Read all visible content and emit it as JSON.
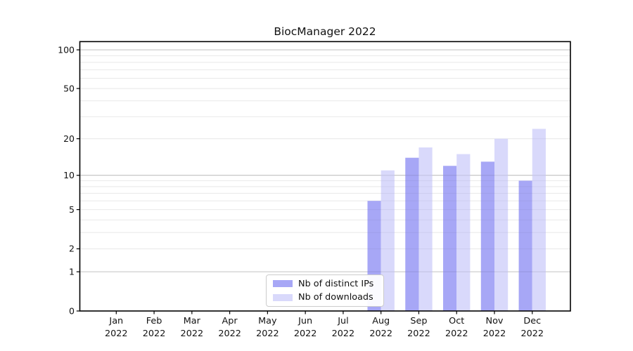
{
  "title": "BiocManager 2022",
  "chart_data": {
    "type": "bar",
    "title": "BiocManager 2022",
    "categories": [
      "Jan 2022",
      "Feb 2022",
      "Mar 2022",
      "Apr 2022",
      "May 2022",
      "Jun 2022",
      "Jul 2022",
      "Aug 2022",
      "Sep 2022",
      "Oct 2022",
      "Nov 2022",
      "Dec 2022"
    ],
    "series": [
      {
        "name": "Nb of distinct IPs",
        "color": "#a7a7f6",
        "values": [
          0,
          0,
          0,
          0,
          0,
          0,
          0,
          6,
          14,
          12,
          13,
          9
        ]
      },
      {
        "name": "Nb of downloads",
        "color": "#d9d9fb",
        "values": [
          0,
          0,
          0,
          0,
          0,
          0,
          0,
          11,
          17,
          15,
          20,
          24
        ]
      }
    ],
    "xlabel": "",
    "ylabel": "",
    "yscale": "log1p",
    "ylim": [
      0,
      120
    ],
    "y_ticks": [
      100,
      50,
      20,
      10,
      5,
      2,
      1,
      0
    ],
    "y_major_gridlines": [
      1,
      10,
      100
    ],
    "y_minor_gridlines": [
      2,
      3,
      4,
      5,
      6,
      7,
      8,
      9,
      20,
      30,
      40,
      50,
      60,
      70,
      80,
      90
    ],
    "grid": "on",
    "legend_position": "lower center"
  },
  "colors": {
    "bar_dark": "#a7a7f6",
    "bar_light": "#d9d9fb",
    "grid_major": "#c0c0c0",
    "grid_minor": "#e8e8e8",
    "spine": "#000000",
    "background": "#ffffff"
  }
}
